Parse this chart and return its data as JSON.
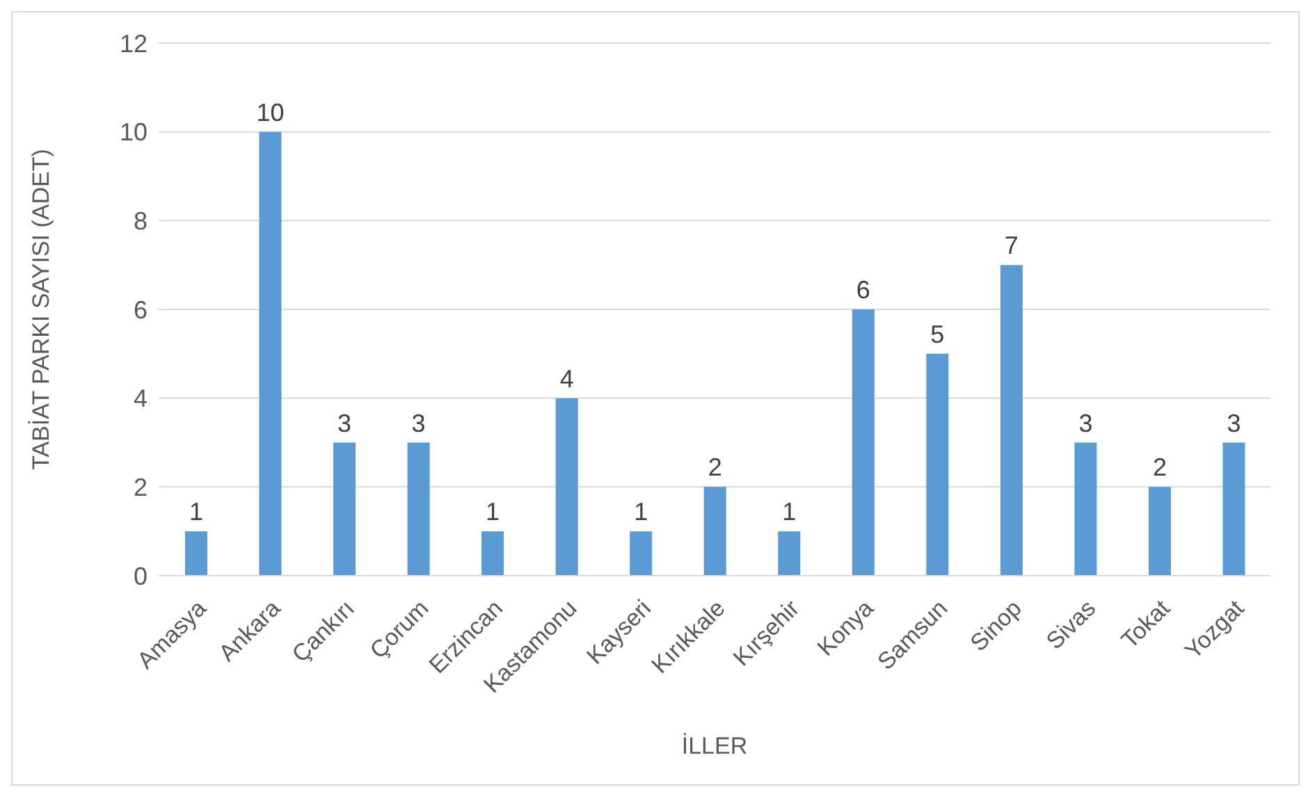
{
  "chart_data": {
    "type": "bar",
    "xlabel": "İLLER",
    "ylabel": "TABİAT PARKI SAYISI (ADET)",
    "categories": [
      "Amasya",
      "Ankara",
      "Çankırı",
      "Çorum",
      "Erzincan",
      "Kastamonu",
      "Kayseri",
      "Kırıkkale",
      "Kırşehir",
      "Konya",
      "Samsun",
      "Sinop",
      "Sivas",
      "Tokat",
      "Yozgat"
    ],
    "values": [
      1,
      10,
      3,
      3,
      1,
      4,
      1,
      2,
      1,
      6,
      5,
      7,
      3,
      2,
      3
    ],
    "color": "#5b9bd5",
    "ylim": [
      0,
      12
    ],
    "yticks": [
      0,
      2,
      4,
      6,
      8,
      10,
      12
    ],
    "grid": "y",
    "data_labels": true
  }
}
